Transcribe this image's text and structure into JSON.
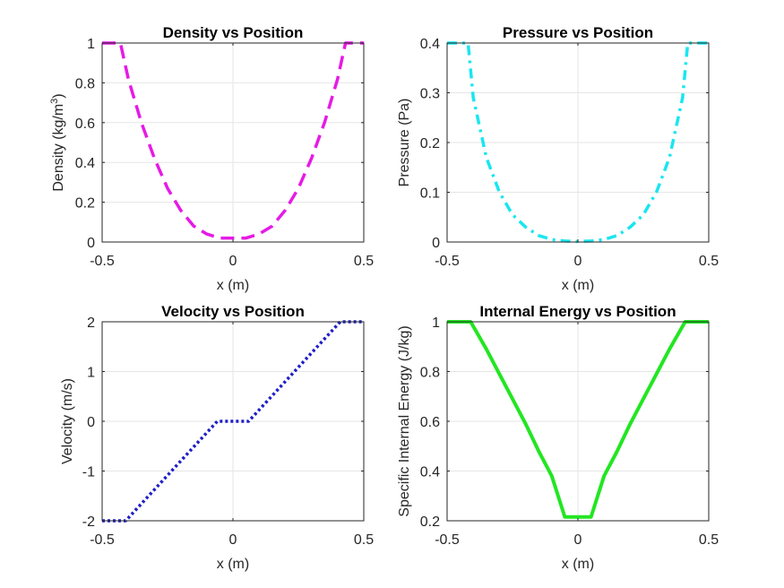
{
  "chart_data": [
    {
      "type": "line",
      "title": "Density vs Position",
      "xlabel": "x (m)",
      "ylabel": "Density (kg/m",
      "ylabel_sup": "3",
      "ylabel_end": ")",
      "xlim": [
        -0.5,
        0.5
      ],
      "ylim": [
        0,
        1
      ],
      "xticks": [
        -0.5,
        0,
        0.5
      ],
      "xtick_labels": [
        "-0.5",
        "0",
        "0.5"
      ],
      "yticks": [
        0,
        0.2,
        0.4,
        0.6,
        0.8,
        1
      ],
      "ytick_labels": [
        "0",
        "0.2",
        "0.4",
        "0.6",
        "0.8",
        "1"
      ],
      "grid": true,
      "color": "#e61ae6",
      "style": "dashed",
      "series": [
        {
          "x": [
            -0.5,
            -0.43,
            -0.4,
            -0.35,
            -0.3,
            -0.25,
            -0.2,
            -0.15,
            -0.1,
            -0.05,
            0.0,
            0.05,
            0.1,
            0.15,
            0.2,
            0.25,
            0.3,
            0.35,
            0.4,
            0.43,
            0.5
          ],
          "values": [
            1.0,
            1.0,
            0.82,
            0.6,
            0.42,
            0.27,
            0.16,
            0.08,
            0.04,
            0.02,
            0.02,
            0.02,
            0.04,
            0.08,
            0.16,
            0.27,
            0.42,
            0.6,
            0.82,
            1.0,
            1.0
          ]
        }
      ]
    },
    {
      "type": "line",
      "title": "Pressure vs Position",
      "xlabel": "x (m)",
      "ylabel": "Pressure (Pa)",
      "xlim": [
        -0.5,
        0.5
      ],
      "ylim": [
        0,
        0.4
      ],
      "xticks": [
        -0.5,
        0,
        0.5
      ],
      "xtick_labels": [
        "-0.5",
        "0",
        "0.5"
      ],
      "yticks": [
        0,
        0.1,
        0.2,
        0.3,
        0.4
      ],
      "ytick_labels": [
        "0",
        "0.1",
        "0.2",
        "0.3",
        "0.4"
      ],
      "grid": true,
      "color": "#1ae6f0",
      "style": "dashdot",
      "series": [
        {
          "x": [
            -0.5,
            -0.42,
            -0.4,
            -0.35,
            -0.3,
            -0.25,
            -0.2,
            -0.15,
            -0.1,
            -0.05,
            0.0,
            0.05,
            0.1,
            0.15,
            0.2,
            0.25,
            0.3,
            0.35,
            0.4,
            0.42,
            0.5
          ],
          "values": [
            0.4,
            0.4,
            0.29,
            0.17,
            0.1,
            0.055,
            0.03,
            0.013,
            0.005,
            0.002,
            0.001,
            0.002,
            0.005,
            0.013,
            0.03,
            0.055,
            0.1,
            0.17,
            0.29,
            0.4,
            0.4
          ]
        }
      ]
    },
    {
      "type": "line",
      "title": "Velocity vs Position",
      "xlabel": "x (m)",
      "ylabel": "Velocity (m/s)",
      "xlim": [
        -0.5,
        0.5
      ],
      "ylim": [
        -2,
        2
      ],
      "xticks": [
        -0.5,
        0,
        0.5
      ],
      "xtick_labels": [
        "-0.5",
        "0",
        "0.5"
      ],
      "yticks": [
        -2,
        -1,
        0,
        1,
        2
      ],
      "ytick_labels": [
        "-2",
        "-1",
        "0",
        "1",
        "2"
      ],
      "grid": true,
      "color": "#1f1fc8",
      "style": "dotted",
      "series": [
        {
          "x": [
            -0.5,
            -0.41,
            -0.06,
            0.06,
            0.41,
            0.5
          ],
          "values": [
            -2,
            -2,
            0,
            0,
            2,
            2
          ]
        }
      ]
    },
    {
      "type": "line",
      "title": "Internal Energy vs Position",
      "xlabel": "x (m)",
      "ylabel": "Specific Internal Energy (J/kg)",
      "xlim": [
        -0.5,
        0.5
      ],
      "ylim": [
        0.2,
        1
      ],
      "xticks": [
        -0.5,
        0,
        0.5
      ],
      "xtick_labels": [
        "-0.5",
        "0",
        "0.5"
      ],
      "yticks": [
        0.2,
        0.4,
        0.6,
        0.8,
        1
      ],
      "ytick_labels": [
        "0.2",
        "0.4",
        "0.6",
        "0.8",
        "1"
      ],
      "grid": true,
      "color": "#22e622",
      "style": "solid",
      "series": [
        {
          "x": [
            -0.5,
            -0.41,
            -0.35,
            -0.3,
            -0.25,
            -0.2,
            -0.15,
            -0.1,
            -0.05,
            0.05,
            0.1,
            0.15,
            0.2,
            0.25,
            0.3,
            0.35,
            0.41,
            0.5
          ],
          "values": [
            1.0,
            1.0,
            0.89,
            0.79,
            0.69,
            0.59,
            0.48,
            0.38,
            0.215,
            0.215,
            0.38,
            0.48,
            0.59,
            0.69,
            0.79,
            0.89,
            1.0,
            1.0
          ]
        }
      ]
    }
  ]
}
